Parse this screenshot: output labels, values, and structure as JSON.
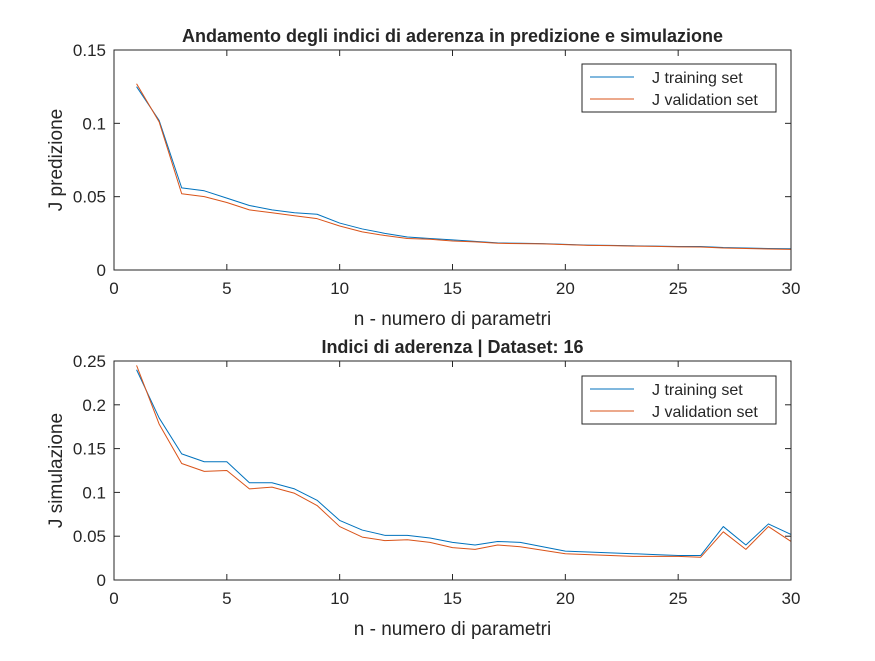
{
  "chart_data": [
    {
      "type": "line",
      "title": "Andamento degli indici di aderenza in predizione e simulazione",
      "xlabel": "n - numero di parametri",
      "ylabel": "J predizione",
      "xlim": [
        0,
        30
      ],
      "ylim": [
        0,
        0.15
      ],
      "xticks": [
        0,
        5,
        10,
        15,
        20,
        25,
        30
      ],
      "yticks": [
        0,
        0.05,
        0.1,
        0.15
      ],
      "xtick_labels": [
        "0",
        "5",
        "10",
        "15",
        "20",
        "25",
        "30"
      ],
      "ytick_labels": [
        "0",
        "0.05",
        "0.1",
        "0.15"
      ],
      "grid": false,
      "legend_position": "top-right",
      "x": [
        1,
        2,
        3,
        4,
        5,
        6,
        7,
        8,
        9,
        10,
        11,
        12,
        13,
        14,
        15,
        16,
        17,
        18,
        19,
        20,
        21,
        22,
        23,
        24,
        25,
        26,
        27,
        28,
        29,
        30
      ],
      "series": [
        {
          "name": "J training set",
          "color": "#0072BD",
          "values": [
            0.125,
            0.102,
            0.056,
            0.054,
            0.049,
            0.044,
            0.041,
            0.039,
            0.038,
            0.032,
            0.028,
            0.025,
            0.0225,
            0.0215,
            0.0205,
            0.0195,
            0.0185,
            0.0182,
            0.018,
            0.0175,
            0.017,
            0.0168,
            0.0165,
            0.0163,
            0.016,
            0.016,
            0.0153,
            0.015,
            0.0147,
            0.0145
          ]
        },
        {
          "name": "J validation set",
          "color": "#D95319",
          "values": [
            0.127,
            0.101,
            0.052,
            0.05,
            0.046,
            0.041,
            0.039,
            0.037,
            0.035,
            0.03,
            0.026,
            0.0235,
            0.0215,
            0.021,
            0.0198,
            0.0192,
            0.0182,
            0.018,
            0.0178,
            0.0173,
            0.0168,
            0.0166,
            0.0163,
            0.0161,
            0.0158,
            0.0157,
            0.015,
            0.0147,
            0.0143,
            0.0141
          ]
        }
      ]
    },
    {
      "type": "line",
      "title": "Indici di aderenza | Dataset: 16",
      "xlabel": "n - numero di parametri",
      "ylabel": "J simulazione",
      "xlim": [
        0,
        30
      ],
      "ylim": [
        0,
        0.25
      ],
      "xticks": [
        0,
        5,
        10,
        15,
        20,
        25,
        30
      ],
      "yticks": [
        0,
        0.05,
        0.1,
        0.15,
        0.2,
        0.25
      ],
      "xtick_labels": [
        "0",
        "5",
        "10",
        "15",
        "20",
        "25",
        "30"
      ],
      "ytick_labels": [
        "0",
        "0.05",
        "0.1",
        "0.15",
        "0.2",
        "0.25"
      ],
      "grid": false,
      "legend_position": "top-right",
      "x": [
        1,
        2,
        3,
        4,
        5,
        6,
        7,
        8,
        9,
        10,
        11,
        12,
        13,
        14,
        15,
        16,
        17,
        18,
        19,
        20,
        21,
        22,
        23,
        24,
        25,
        26,
        27,
        28,
        29,
        30
      ],
      "series": [
        {
          "name": "J training set",
          "color": "#0072BD",
          "values": [
            0.24,
            0.185,
            0.144,
            0.135,
            0.135,
            0.111,
            0.111,
            0.104,
            0.091,
            0.068,
            0.057,
            0.051,
            0.051,
            0.048,
            0.043,
            0.04,
            0.044,
            0.043,
            0.038,
            0.033,
            0.032,
            0.031,
            0.03,
            0.029,
            0.028,
            0.028,
            0.061,
            0.04,
            0.064,
            0.052
          ]
        },
        {
          "name": "J validation set",
          "color": "#D95319",
          "values": [
            0.245,
            0.178,
            0.133,
            0.124,
            0.125,
            0.104,
            0.106,
            0.099,
            0.085,
            0.061,
            0.049,
            0.045,
            0.046,
            0.043,
            0.037,
            0.035,
            0.04,
            0.038,
            0.034,
            0.03,
            0.029,
            0.028,
            0.027,
            0.027,
            0.027,
            0.026,
            0.055,
            0.035,
            0.061,
            0.044
          ]
        }
      ]
    }
  ]
}
